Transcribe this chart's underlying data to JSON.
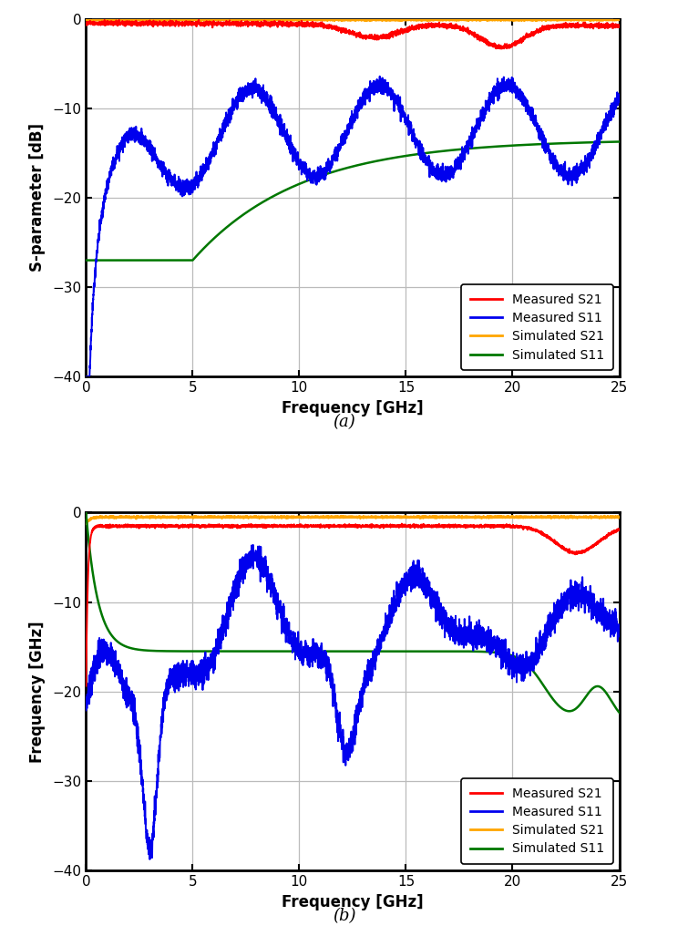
{
  "title_a": "(a)",
  "title_b": "(b)",
  "xlabel": "Frequency [GHz]",
  "ylabel_a": "S-parameter [dB]",
  "ylabel_b": "Frequency [GHz]",
  "xlim": [
    0,
    25
  ],
  "ylim": [
    -40,
    0
  ],
  "xticks": [
    0,
    5,
    10,
    15,
    20,
    25
  ],
  "yticks": [
    -40,
    -30,
    -20,
    -10,
    0
  ],
  "legend_labels": [
    "Measured S21",
    "Measured S11",
    "Simulated S21",
    "Simulated S11"
  ],
  "colors": {
    "meas_s21": "#ff0000",
    "meas_s11": "#0000ee",
    "sim_s21": "#ffa500",
    "sim_s11": "#007700"
  },
  "background_color": "#ffffff",
  "grid_color": "#bbbbbb"
}
